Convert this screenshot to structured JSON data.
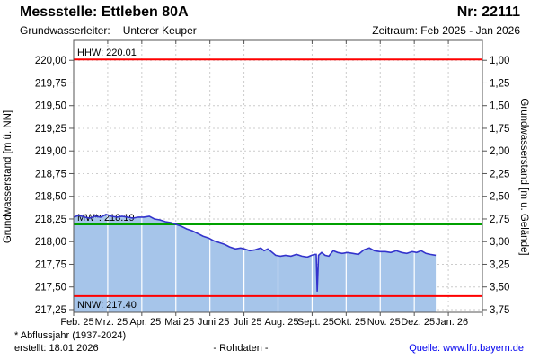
{
  "header": {
    "title": "Messstelle: Ettleben 80A",
    "number": "Nr: 22111",
    "aquifer_label": "Grundwasserleiter:",
    "aquifer_value": "Unterer Keuper",
    "period": "Zeitraum: Feb 2025 - Jan 2026"
  },
  "footer": {
    "note": "* Abflussjahr (1937-2024)",
    "created": "erstellt:  18.01.2026",
    "center_label": "- Rohdaten -",
    "source_label": "Quelle:",
    "source_link": "www.lfu.bayern.de"
  },
  "chart_data": {
    "type": "area",
    "title": "",
    "ylabel_left": "Grundwasserstand [m ü. NN]",
    "ylabel_right": "Grundwasserstand [m u. Gelände]",
    "ylim_left": [
      217.22,
      220.22
    ],
    "xlim_months": [
      0,
      12
    ],
    "ground_elevation_m": 221.0,
    "grid": true,
    "x_month_labels": [
      "Feb. 25",
      "Mrz. 25",
      "Apr. 25",
      "Mai 25",
      "Juni 25",
      "Juli 25",
      "Aug. 25",
      "Sept. 25",
      "Okt. 25",
      "Nov. 25",
      "Dez. 25",
      "Jan. 26"
    ],
    "yticks_left": [
      {
        "v": 220.0,
        "label": "220,00"
      },
      {
        "v": 219.75,
        "label": "219,75"
      },
      {
        "v": 219.5,
        "label": "219,50"
      },
      {
        "v": 219.25,
        "label": "219,25"
      },
      {
        "v": 219.0,
        "label": "219,00"
      },
      {
        "v": 218.75,
        "label": "218,75"
      },
      {
        "v": 218.5,
        "label": "218,50"
      },
      {
        "v": 218.25,
        "label": "218,25"
      },
      {
        "v": 218.0,
        "label": "218,00"
      },
      {
        "v": 217.75,
        "label": "217,75"
      },
      {
        "v": 217.5,
        "label": "217,50"
      },
      {
        "v": 217.25,
        "label": "217,25"
      }
    ],
    "yticks_right": [
      {
        "v": 220.0,
        "label": "1,00"
      },
      {
        "v": 219.75,
        "label": "1,25"
      },
      {
        "v": 219.5,
        "label": "1,50"
      },
      {
        "v": 219.25,
        "label": "1,75"
      },
      {
        "v": 219.0,
        "label": "2,00"
      },
      {
        "v": 218.75,
        "label": "2,25"
      },
      {
        "v": 218.5,
        "label": "2,50"
      },
      {
        "v": 218.25,
        "label": "2,75"
      },
      {
        "v": 218.0,
        "label": "3,00"
      },
      {
        "v": 217.75,
        "label": "3,25"
      },
      {
        "v": 217.5,
        "label": "3,50"
      },
      {
        "v": 217.25,
        "label": "3,75"
      }
    ],
    "reference_lines": [
      {
        "name": "hhw",
        "label": "HHW: 220.01",
        "value": 220.01,
        "color": "#ff0000",
        "label_dy": -4
      },
      {
        "name": "mw",
        "label": "MW*: 218.19",
        "value": 218.19,
        "color": "#00a000",
        "label_dy": -4
      },
      {
        "name": "nnw",
        "label": "NNW: 217.40",
        "value": 217.4,
        "color": "#ff0000",
        "label_dy": 13
      }
    ],
    "series": [
      {
        "name": "Grundwasserstand Rohdaten",
        "color": "#3333cc",
        "fill": "#a6c5ea",
        "points_month_value": [
          [
            0,
            218.27
          ],
          [
            0.16,
            218.29
          ],
          [
            0.32,
            218.27
          ],
          [
            0.47,
            218.26
          ],
          [
            0.63,
            218.28
          ],
          [
            0.79,
            218.27
          ],
          [
            0.95,
            218.3
          ],
          [
            1.11,
            218.28
          ],
          [
            1.27,
            218.27
          ],
          [
            1.42,
            218.28
          ],
          [
            1.58,
            218.27
          ],
          [
            1.74,
            218.26
          ],
          [
            1.9,
            218.27
          ],
          [
            2.06,
            218.27
          ],
          [
            2.22,
            218.28
          ],
          [
            2.37,
            218.25
          ],
          [
            2.53,
            218.24
          ],
          [
            2.69,
            218.22
          ],
          [
            2.85,
            218.21
          ],
          [
            3.01,
            218.19
          ],
          [
            3.16,
            218.17
          ],
          [
            3.32,
            218.14
          ],
          [
            3.48,
            218.12
          ],
          [
            3.64,
            218.09
          ],
          [
            3.8,
            218.06
          ],
          [
            3.96,
            218.04
          ],
          [
            4.11,
            218.01
          ],
          [
            4.27,
            217.99
          ],
          [
            4.43,
            217.97
          ],
          [
            4.59,
            217.94
          ],
          [
            4.75,
            217.92
          ],
          [
            4.9,
            217.93
          ],
          [
            5.01,
            217.92
          ],
          [
            5.17,
            217.9
          ],
          [
            5.33,
            217.91
          ],
          [
            5.49,
            217.93
          ],
          [
            5.59,
            217.9
          ],
          [
            5.7,
            217.92
          ],
          [
            5.83,
            217.88
          ],
          [
            5.93,
            217.85
          ],
          [
            6.07,
            217.84
          ],
          [
            6.22,
            217.85
          ],
          [
            6.38,
            217.84
          ],
          [
            6.54,
            217.86
          ],
          [
            6.7,
            217.84
          ],
          [
            6.86,
            217.83
          ],
          [
            6.99,
            217.85
          ],
          [
            7.07,
            217.86
          ],
          [
            7.12,
            217.86
          ],
          [
            7.15,
            217.45
          ],
          [
            7.19,
            217.85
          ],
          [
            7.28,
            217.88
          ],
          [
            7.38,
            217.85
          ],
          [
            7.49,
            217.84
          ],
          [
            7.62,
            217.9
          ],
          [
            7.75,
            217.88
          ],
          [
            7.88,
            217.87
          ],
          [
            8.04,
            217.88
          ],
          [
            8.2,
            217.87
          ],
          [
            8.36,
            217.86
          ],
          [
            8.52,
            217.91
          ],
          [
            8.68,
            217.93
          ],
          [
            8.83,
            217.9
          ],
          [
            8.99,
            217.89
          ],
          [
            9.15,
            217.89
          ],
          [
            9.31,
            217.88
          ],
          [
            9.47,
            217.9
          ],
          [
            9.63,
            217.88
          ],
          [
            9.78,
            217.87
          ],
          [
            9.94,
            217.89
          ],
          [
            10.07,
            217.88
          ],
          [
            10.2,
            217.9
          ],
          [
            10.34,
            217.87
          ],
          [
            10.47,
            217.86
          ],
          [
            10.63,
            217.85
          ]
        ]
      }
    ],
    "colors": {
      "grid": "#cccccc",
      "axis": "#555555",
      "month_grid_on_fill": "#ffffff",
      "curve": "#3333cc",
      "area_fill": "#a6c5ea",
      "extreme_line": "#ff0000",
      "mean_line": "#00a000",
      "link": "#0000ee"
    }
  }
}
